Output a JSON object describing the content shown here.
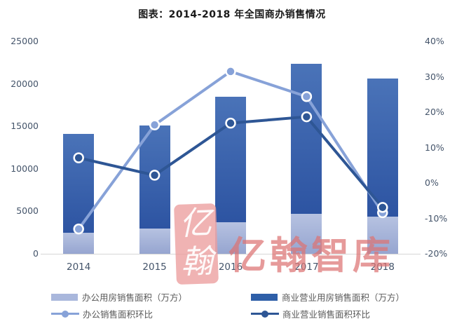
{
  "title": "图表：2014-2018 年全国商办销售情况",
  "watermark": {
    "seal_char_top": "亿",
    "seal_char_bottom": "翰",
    "text": "亿翰智库",
    "color": "#dd7373"
  },
  "chart_data": {
    "type": "bar",
    "subtype": "stacked-bar-with-lines-combo",
    "categories": [
      "2014",
      "2015",
      "2016",
      "2017",
      "2018"
    ],
    "bar_series": [
      {
        "name": "办公用房销售面积（万方）",
        "axis": "left",
        "values": [
          2500,
          2950,
          3750,
          4700,
          4400
        ],
        "color_top": "#b6c2e1",
        "color_bottom": "#96a5d0",
        "stack_order": "bottom"
      },
      {
        "name": "商业营业用房销售面积（万方）",
        "axis": "left",
        "values": [
          11600,
          12150,
          14700,
          17700,
          16250
        ],
        "color_top": "#4a73b8",
        "color_bottom": "#2d54a2",
        "stack_order": "top"
      }
    ],
    "line_series": [
      {
        "name": "办公销售面积环比",
        "axis": "right",
        "values_pct": [
          -13,
          16.4,
          31.5,
          24.4,
          -8.4
        ],
        "color": "#87a2d8"
      },
      {
        "name": "商业营业销售面积环比",
        "axis": "right",
        "values_pct": [
          7.1,
          2.2,
          16.9,
          18.7,
          -6.9
        ],
        "color": "#2e5695"
      }
    ],
    "left_axis": {
      "min": 0,
      "max": 25000,
      "step": 5000,
      "ticks": [
        "0",
        "5000",
        "10000",
        "15000",
        "20000",
        "25000"
      ]
    },
    "right_axis": {
      "min": -20,
      "max": 40,
      "step": 10,
      "ticks": [
        "-20%",
        "-10%",
        "0%",
        "10%",
        "20%",
        "30%",
        "40%"
      ]
    },
    "grid": "off",
    "legend_position": "bottom-two-columns",
    "legend": [
      {
        "label": "办公用房销售面积（万方）",
        "glyph": "bar",
        "color": "#a9b7dc"
      },
      {
        "label": "商业营业用房销售面积（万方）",
        "glyph": "bar",
        "color": "#2e5fa8"
      },
      {
        "label": "办公销售面积环比",
        "glyph": "line-dot",
        "color": "#87a2d8"
      },
      {
        "label": "商业营业销售面积环比",
        "glyph": "line-dot",
        "color": "#2e5695"
      }
    ]
  }
}
